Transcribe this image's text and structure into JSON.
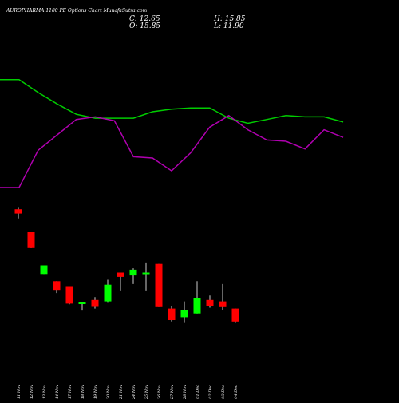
{
  "header": {
    "title": "AUROPHARMA 1180  PE Options  Chart MunafaSutra.com",
    "close": "C: 12.65",
    "open": "O: 15.85",
    "high": "H: 15.85",
    "low": "L: 11.90"
  },
  "colors": {
    "background": "#000000",
    "up_candle": "#00ff00",
    "down_candle": "#ff0000",
    "line_green": "#00cc00",
    "line_magenta": "#b000b0",
    "wick": "#ffffff",
    "text": "#ffffff"
  },
  "chart_data": [
    {
      "type": "line",
      "title": "",
      "series": [
        {
          "name": "",
          "color": "#00cc00",
          "values": [
            0.16,
            0.16,
            0.26,
            0.35,
            0.43,
            0.46,
            0.46,
            0.46,
            0.41,
            0.39,
            0.38,
            0.38,
            0.46,
            0.5,
            0.47,
            0.44,
            0.45,
            0.45,
            0.49
          ]
        },
        {
          "name": "",
          "color": "#b000b0",
          "values": [
            1.0,
            1.0,
            0.71,
            0.59,
            0.47,
            0.45,
            0.48,
            0.76,
            0.77,
            0.87,
            0.73,
            0.53,
            0.44,
            0.55,
            0.63,
            0.64,
            0.7,
            0.55,
            0.61
          ]
        }
      ],
      "ylim": [
        0,
        1
      ]
    },
    {
      "type": "candlestick",
      "title": "",
      "categories": [
        "11 Nov",
        "12 Nov",
        "13 Nov",
        "14 Nov",
        "17 Nov",
        "18 Nov",
        "19 Nov",
        "20 Nov",
        "21 Nov",
        "24 Nov",
        "25 Nov",
        "26 Nov",
        "27 Nov",
        "28 Nov",
        "01 Dec",
        "02 Dec",
        "03 Dec",
        "04 Dec"
      ],
      "ohlc": [
        {
          "open": 38.0,
          "high": 38.5,
          "low": 34.8,
          "close": 36.5
        },
        {
          "open": 30.0,
          "high": 30.0,
          "low": 24.5,
          "close": 24.5
        },
        {
          "open": 15.5,
          "high": 18.5,
          "low": 15.5,
          "close": 18.5
        },
        {
          "open": 13.0,
          "high": 13.0,
          "low": 8.9,
          "close": 9.7
        },
        {
          "open": 11.0,
          "high": 11.0,
          "low": 5.0,
          "close": 5.2
        },
        {
          "open": 5.1,
          "high": 5.6,
          "low": 2.8,
          "close": 5.6
        },
        {
          "open": 6.5,
          "high": 7.5,
          "low": 3.5,
          "close": 4.1
        },
        {
          "open": 6.0,
          "high": 13.5,
          "low": 5.5,
          "close": 11.8
        },
        {
          "open": 16.0,
          "high": 16.0,
          "low": 9.5,
          "close": 14.5
        },
        {
          "open": 15.0,
          "high": 17.5,
          "low": 12.0,
          "close": 17.0
        },
        {
          "open": 15.5,
          "high": 19.5,
          "low": 9.5,
          "close": 16.0
        },
        {
          "open": 19.0,
          "high": 19.0,
          "low": 4.0,
          "close": 4.0
        },
        {
          "open": 3.5,
          "high": 4.5,
          "low": -1.0,
          "close": -0.5
        },
        {
          "open": 0.5,
          "high": 6.0,
          "low": -1.5,
          "close": 3.0
        },
        {
          "open": 1.8,
          "high": 13.0,
          "low": 1.8,
          "close": 7.0
        },
        {
          "open": 6.5,
          "high": 8.0,
          "low": 3.8,
          "close": 4.5
        },
        {
          "open": 6.0,
          "high": 12.0,
          "low": 3.0,
          "close": 4.0
        },
        {
          "open": 3.5,
          "high": 3.5,
          "low": -1.5,
          "close": -1.0
        }
      ],
      "xlabel": "",
      "ylabel": ""
    }
  ]
}
